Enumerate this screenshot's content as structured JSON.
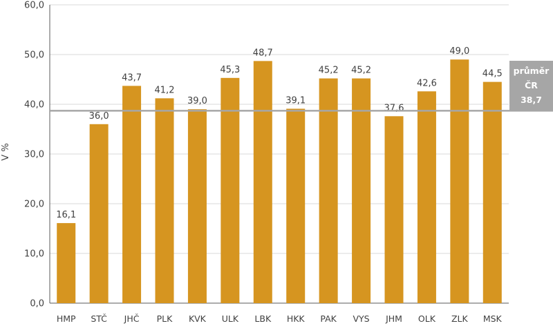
{
  "chart_data": {
    "type": "bar",
    "categories": [
      "HMP",
      "STČ",
      "JHČ",
      "PLK",
      "KVK",
      "ULK",
      "LBK",
      "HKK",
      "PAK",
      "VYS",
      "JHM",
      "OLK",
      "ZLK",
      "MSK"
    ],
    "values": [
      16.1,
      36.0,
      43.7,
      41.2,
      39.0,
      45.3,
      48.7,
      39.1,
      45.2,
      45.2,
      37.6,
      42.6,
      49.0,
      44.5
    ],
    "data_labels": [
      "16,1",
      "36,0",
      "43,7",
      "41,2",
      "39,0",
      "45,3",
      "48,7",
      "39,1",
      "45,2",
      "45,2",
      "37,6",
      "42,6",
      "49,0",
      "44,5"
    ],
    "ylabel": "V %",
    "ylim": [
      0,
      60
    ],
    "yticks": [
      0,
      10,
      20,
      30,
      40,
      50,
      60
    ],
    "ytick_labels": [
      "0,0",
      "10,0",
      "20,0",
      "30,0",
      "40,0",
      "50,0",
      "60,0"
    ],
    "grid": true,
    "bar_color": "#D69520",
    "reference_line": {
      "value": 38.7,
      "label_lines": [
        "průměr",
        "ČR",
        "38,7"
      ],
      "color": "#A6A6A6"
    }
  }
}
